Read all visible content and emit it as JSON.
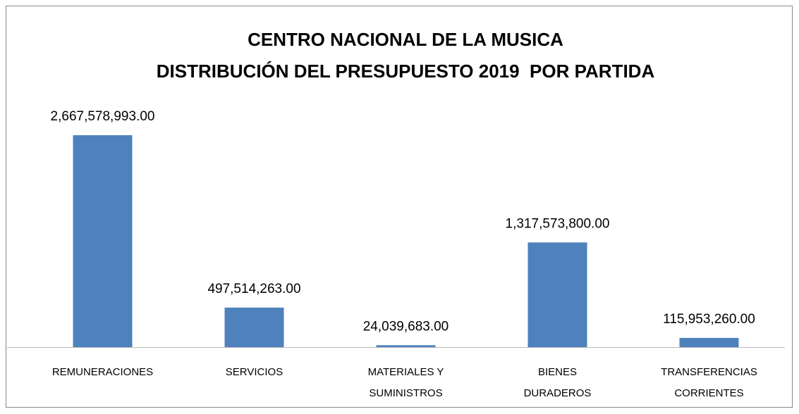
{
  "chart_data": {
    "type": "bar",
    "title": [
      "CENTRO NACIONAL DE LA MUSICA",
      "DISTRIBUCIÓN DEL PRESUPUESTO 2019  POR PARTIDA"
    ],
    "categories": [
      "REMUNERACIONES",
      "SERVICIOS",
      "MATERIALES Y SUMINISTROS",
      "BIENES DURADEROS",
      "TRANSFERENCIAS CORRIENTES"
    ],
    "values": [
      2667578993,
      497514263,
      24039683,
      1317573800,
      115953260
    ],
    "value_labels": [
      "2,667,578,993.00",
      "497,514,263.00",
      "24,039,683.00",
      "1,317,573,800.00",
      "115,953,260.00"
    ],
    "color": "#4f81bd"
  }
}
